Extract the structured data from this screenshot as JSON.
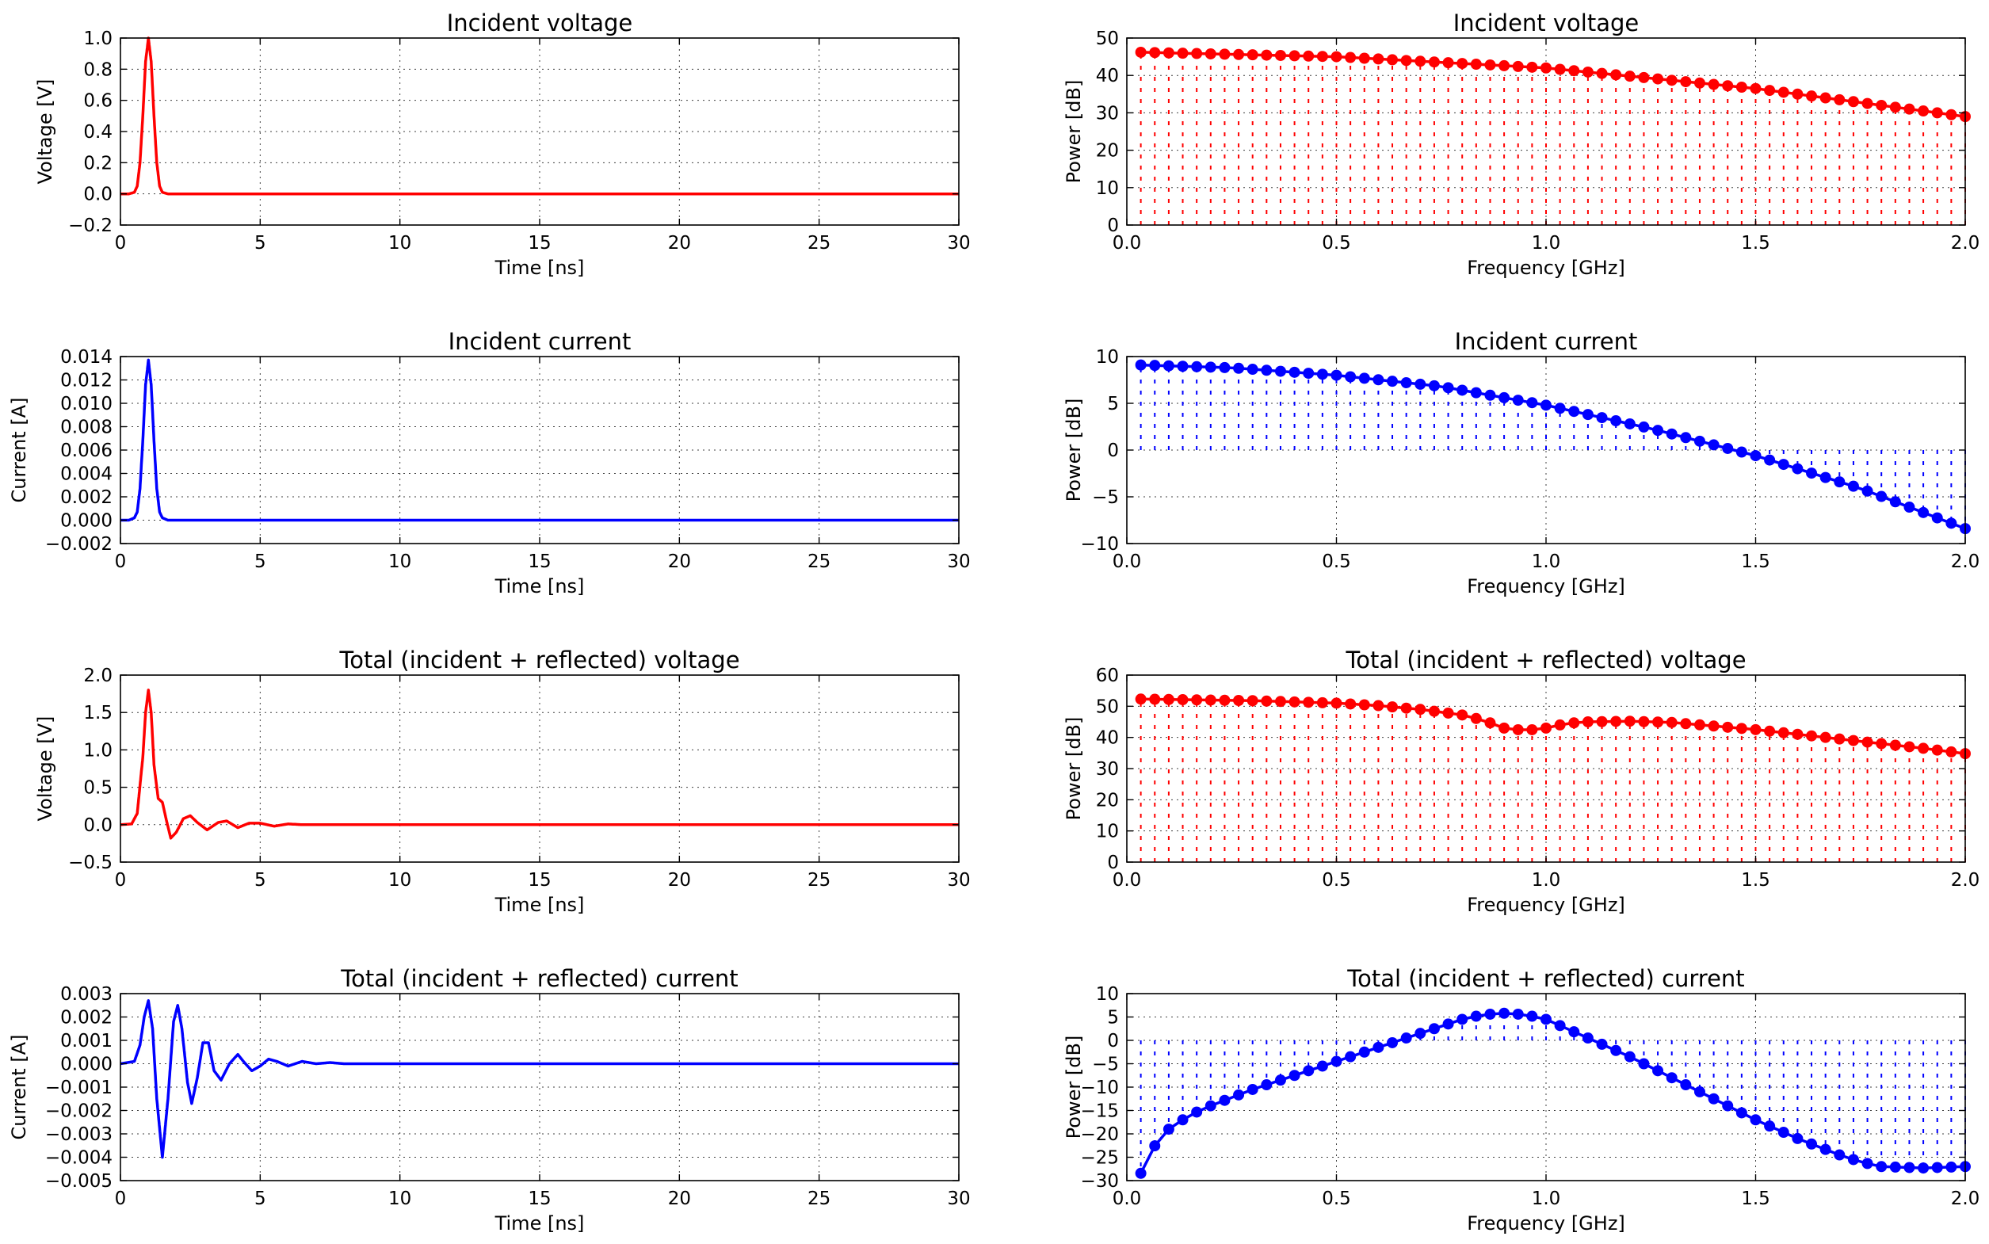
{
  "chart_data": [
    {
      "type": "line",
      "title": "Incident voltage",
      "xlabel": "Time [ns]",
      "ylabel": "Voltage [V]",
      "xlim": [
        0,
        30
      ],
      "ylim": [
        -0.2,
        1.0
      ],
      "xticks": [
        "0",
        "5",
        "10",
        "15",
        "20",
        "25",
        "30"
      ],
      "yticks": [
        "−0.2",
        "0.0",
        "0.2",
        "0.4",
        "0.6",
        "0.8",
        "1.0"
      ],
      "grid": true,
      "color": "#ff0000",
      "series": [
        {
          "x": [
            0,
            0.3,
            0.5,
            0.6,
            0.7,
            0.8,
            0.9,
            1.0,
            1.1,
            1.2,
            1.3,
            1.4,
            1.5,
            1.7,
            2,
            5,
            10,
            15,
            20,
            25,
            30
          ],
          "y": [
            0,
            0,
            0.01,
            0.05,
            0.2,
            0.5,
            0.85,
            1.0,
            0.85,
            0.5,
            0.2,
            0.05,
            0.01,
            0,
            0,
            0,
            0,
            0,
            0,
            0,
            0
          ]
        }
      ]
    },
    {
      "type": "line",
      "title": "Incident voltage",
      "xlabel": "Frequency [GHz]",
      "ylabel": "Power [dB]",
      "xlim": [
        0,
        2.0
      ],
      "ylim": [
        0,
        50
      ],
      "xticks": [
        "0.0",
        "0.5",
        "1.0",
        "1.5",
        "2.0"
      ],
      "yticks": [
        "0",
        "10",
        "20",
        "30",
        "40",
        "50"
      ],
      "grid": true,
      "color": "#ff0000",
      "stems": true,
      "series": [
        {
          "x": [
            0.033,
            0.5,
            1.0,
            1.5,
            2.0
          ],
          "y": [
            46.2,
            45.0,
            42.0,
            36.5,
            29.0
          ]
        }
      ]
    },
    {
      "type": "line",
      "title": "Incident current",
      "xlabel": "Time [ns]",
      "ylabel": "Current [A]",
      "xlim": [
        0,
        30
      ],
      "ylim": [
        -0.002,
        0.014
      ],
      "xticks": [
        "0",
        "5",
        "10",
        "15",
        "20",
        "25",
        "30"
      ],
      "yticks": [
        "−0.002",
        "0.000",
        "0.002",
        "0.004",
        "0.006",
        "0.008",
        "0.010",
        "0.012",
        "0.014"
      ],
      "grid": true,
      "color": "#0000ff",
      "series": [
        {
          "x": [
            0,
            0.3,
            0.5,
            0.6,
            0.7,
            0.8,
            0.9,
            1.0,
            1.1,
            1.2,
            1.3,
            1.4,
            1.5,
            1.7,
            2,
            5,
            10,
            15,
            20,
            25,
            30
          ],
          "y": [
            0,
            0,
            0.0002,
            0.0007,
            0.0027,
            0.0068,
            0.0116,
            0.0137,
            0.0116,
            0.0068,
            0.0027,
            0.0007,
            0.0002,
            0,
            0,
            0,
            0,
            0,
            0,
            0,
            0
          ]
        }
      ]
    },
    {
      "type": "line",
      "title": "Incident current",
      "xlabel": "Frequency [GHz]",
      "ylabel": "Power [dB]",
      "xlim": [
        0,
        2.0
      ],
      "ylim": [
        -10,
        10
      ],
      "xticks": [
        "0.0",
        "0.5",
        "1.0",
        "1.5",
        "2.0"
      ],
      "yticks": [
        "−10",
        "−5",
        "0",
        "5",
        "10"
      ],
      "grid": true,
      "color": "#0000ff",
      "stems": true,
      "series": [
        {
          "x": [
            0.033,
            0.25,
            0.5,
            0.75,
            1.0,
            1.25,
            1.5,
            1.75,
            2.0
          ],
          "y": [
            9.1,
            8.8,
            8.0,
            6.8,
            4.8,
            2.3,
            -0.6,
            -4.1,
            -8.4
          ]
        }
      ]
    },
    {
      "type": "line",
      "title": "Total (incident + reflected) voltage",
      "xlabel": "Time [ns]",
      "ylabel": "Voltage [V]",
      "xlim": [
        0,
        30
      ],
      "ylim": [
        -0.5,
        2.0
      ],
      "xticks": [
        "0",
        "5",
        "10",
        "15",
        "20",
        "25",
        "30"
      ],
      "yticks": [
        "−0.5",
        "0.0",
        "0.5",
        "1.0",
        "1.5",
        "2.0"
      ],
      "grid": true,
      "color": "#ff0000",
      "series": [
        {
          "x": [
            0,
            0.4,
            0.6,
            0.8,
            0.9,
            1.0,
            1.1,
            1.2,
            1.35,
            1.5,
            1.65,
            1.8,
            2.0,
            2.25,
            2.5,
            2.75,
            3.1,
            3.5,
            3.8,
            4.2,
            4.6,
            5.0,
            5.5,
            6.0,
            6.5,
            7,
            8,
            10,
            15,
            20,
            25,
            30
          ],
          "y": [
            0,
            0.01,
            0.15,
            0.9,
            1.5,
            1.8,
            1.5,
            0.8,
            0.35,
            0.3,
            0.05,
            -0.18,
            -0.1,
            0.08,
            0.12,
            0.03,
            -0.07,
            0.03,
            0.05,
            -0.04,
            0.02,
            0.02,
            -0.02,
            0.01,
            0,
            0,
            0,
            0,
            0,
            0,
            0,
            0
          ]
        }
      ]
    },
    {
      "type": "line",
      "title": "Total (incident + reflected) voltage",
      "xlabel": "Frequency [GHz]",
      "ylabel": "Power [dB]",
      "xlim": [
        0,
        2.0
      ],
      "ylim": [
        0,
        60
      ],
      "xticks": [
        "0.0",
        "0.5",
        "1.0",
        "1.5",
        "2.0"
      ],
      "yticks": [
        "0",
        "10",
        "20",
        "30",
        "40",
        "50",
        "60"
      ],
      "grid": true,
      "color": "#ff0000",
      "stems": true,
      "series": [
        {
          "x": [
            0.033,
            0.3,
            0.5,
            0.6,
            0.7,
            0.8,
            0.85,
            0.9,
            0.95,
            1.0,
            1.05,
            1.1,
            1.2,
            1.3,
            1.5,
            1.7,
            1.9,
            2.0
          ],
          "y": [
            52.3,
            51.8,
            51.0,
            50.2,
            49.0,
            47.2,
            45.5,
            43.0,
            42.2,
            43.0,
            44.5,
            45.0,
            45.2,
            44.8,
            42.5,
            39.5,
            36.5,
            34.8
          ]
        }
      ]
    },
    {
      "type": "line",
      "title": "Total (incident + reflected) current",
      "xlabel": "Time [ns]",
      "ylabel": "Current [A]",
      "xlim": [
        0,
        30
      ],
      "ylim": [
        -0.005,
        0.003
      ],
      "xticks": [
        "0",
        "5",
        "10",
        "15",
        "20",
        "25",
        "30"
      ],
      "yticks": [
        "−0.005",
        "−0.004",
        "−0.003",
        "−0.002",
        "−0.001",
        "0.000",
        "0.001",
        "0.002",
        "0.003"
      ],
      "grid": true,
      "color": "#0000ff",
      "series": [
        {
          "x": [
            0,
            0.5,
            0.7,
            0.85,
            1.0,
            1.15,
            1.3,
            1.5,
            1.7,
            1.9,
            2.05,
            2.2,
            2.4,
            2.55,
            2.75,
            2.95,
            3.15,
            3.35,
            3.6,
            3.9,
            4.2,
            4.4,
            4.7,
            5.0,
            5.3,
            5.6,
            6.0,
            6.5,
            7.0,
            7.5,
            8.0,
            9.0,
            10,
            15,
            20,
            25,
            30
          ],
          "y": [
            0,
            0.0001,
            0.0008,
            0.002,
            0.0027,
            0.0015,
            -0.0015,
            -0.004,
            -0.0015,
            0.0018,
            0.0025,
            0.0015,
            -0.0008,
            -0.0017,
            -0.0006,
            0.0009,
            0.0009,
            -0.0003,
            -0.0007,
            0,
            0.0004,
            0.0001,
            -0.0003,
            -0.0001,
            0.0002,
            0.0001,
            -0.0001,
            0.0001,
            0,
            5e-05,
            0,
            0,
            0,
            0,
            0,
            0,
            0
          ]
        }
      ]
    },
    {
      "type": "line",
      "title": "Total (incident + reflected) current",
      "xlabel": "Frequency [GHz]",
      "ylabel": "Power [dB]",
      "xlim": [
        0,
        2.0
      ],
      "ylim": [
        -30,
        10
      ],
      "xticks": [
        "0.0",
        "0.5",
        "1.0",
        "1.5",
        "2.0"
      ],
      "yticks": [
        "−30",
        "−25",
        "−20",
        "−15",
        "−10",
        "−5",
        "0",
        "5",
        "10"
      ],
      "grid": true,
      "color": "#0000ff",
      "stems": true,
      "series": [
        {
          "x": [
            0.033,
            0.067,
            0.1,
            0.15,
            0.2,
            0.3,
            0.4,
            0.5,
            0.6,
            0.7,
            0.8,
            0.85,
            0.9,
            0.95,
            1.0,
            1.05,
            1.1,
            1.2,
            1.3,
            1.4,
            1.5,
            1.6,
            1.7,
            1.75,
            1.8,
            1.9,
            2.0
          ],
          "y": [
            -28.5,
            -22.5,
            -19,
            -16,
            -14,
            -10.5,
            -7.5,
            -4.5,
            -1.5,
            1.5,
            4.5,
            5.5,
            5.8,
            5.5,
            4.5,
            2.5,
            0.5,
            -3.5,
            -8,
            -12.5,
            -17,
            -21,
            -24.5,
            -26,
            -27,
            -27.3,
            -27
          ]
        }
      ]
    }
  ]
}
